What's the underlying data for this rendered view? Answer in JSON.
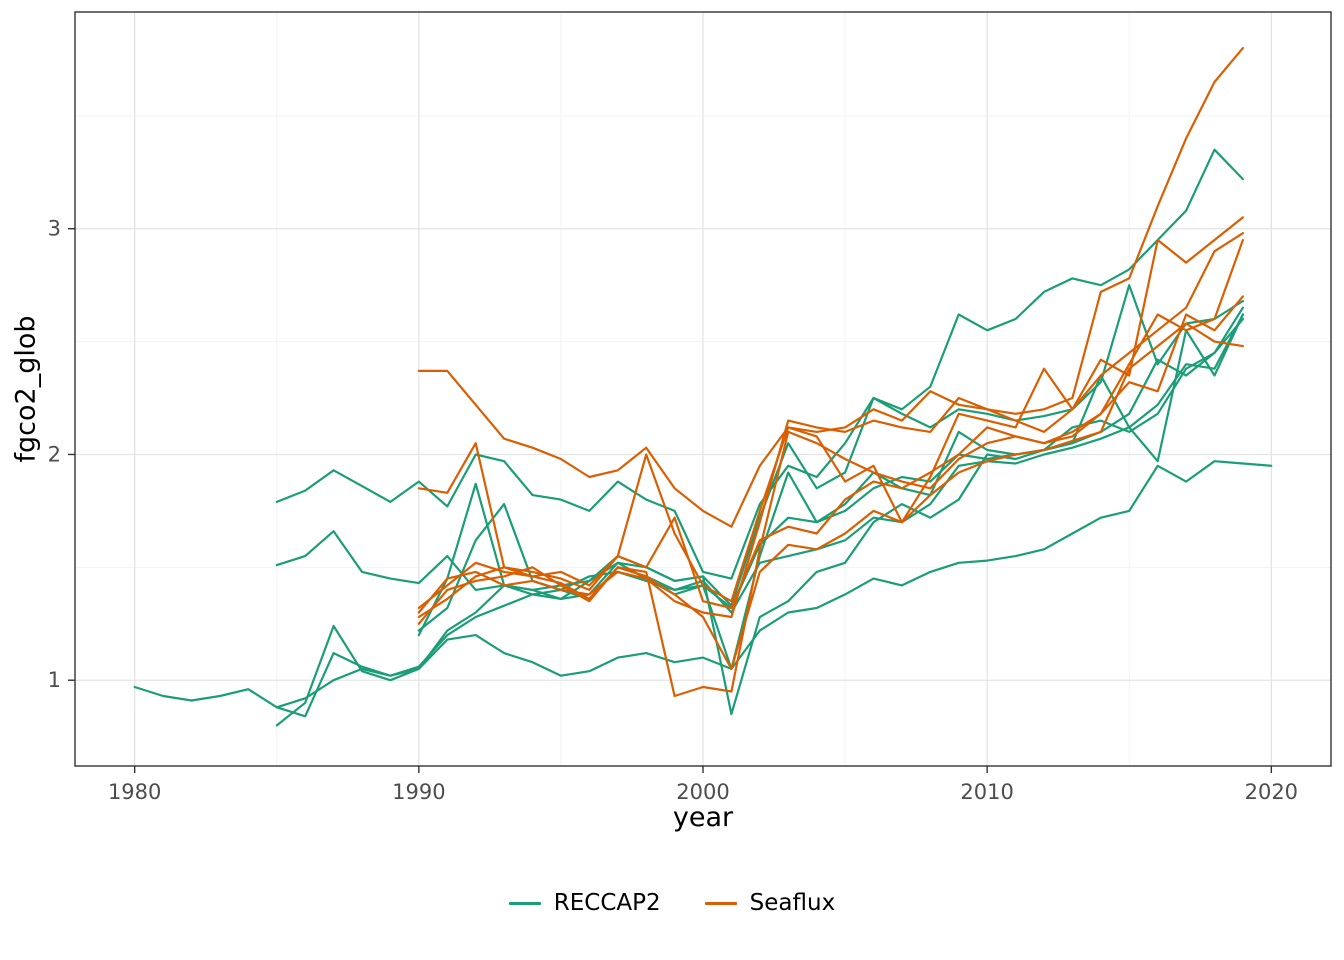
{
  "chart_data": {
    "type": "line",
    "title": "",
    "xlabel": "year",
    "ylabel": "fgco2_glob",
    "xlim": [
      1977.9,
      2022.1
    ],
    "ylim": [
      0.62,
      3.96
    ],
    "x_ticks": [
      1980,
      1990,
      2000,
      2010,
      2020
    ],
    "y_ticks": [
      1,
      2,
      3
    ],
    "x_minor": [
      1985,
      1995,
      2005,
      2015
    ],
    "y_minor": [
      1.5,
      2.5,
      3.5
    ],
    "grid": true,
    "legend_position": "bottom",
    "groups": [
      {
        "name": "RECCAP2",
        "color": "#1B9E77"
      },
      {
        "name": "Seaflux",
        "color": "#D95F02"
      }
    ],
    "series": [
      {
        "group": "RECCAP2",
        "start_year": 1980,
        "values": [
          0.97,
          0.93,
          0.91,
          0.93,
          0.96,
          0.88,
          0.92,
          1.0,
          1.05,
          1.02,
          1.05,
          1.18,
          1.2,
          1.12,
          1.08,
          1.02,
          1.04,
          1.1,
          1.12,
          1.08,
          1.1,
          1.05,
          1.22,
          1.3,
          1.32,
          1.38,
          1.45,
          1.42,
          1.48,
          1.52,
          1.53,
          1.55,
          1.58,
          1.65,
          1.72,
          1.75,
          1.95,
          1.88,
          1.97,
          1.96,
          1.95
        ]
      },
      {
        "group": "RECCAP2",
        "start_year": 1985,
        "values": [
          1.79,
          1.84,
          1.93,
          1.86,
          1.79,
          1.88,
          1.77,
          2.0,
          1.97,
          1.82,
          1.8,
          1.75,
          1.88,
          1.8,
          1.75,
          1.48,
          1.45,
          1.78,
          1.95,
          1.9,
          2.05,
          2.25,
          2.2,
          2.3,
          2.62,
          2.55,
          2.6,
          2.72,
          2.78,
          2.75,
          2.82,
          2.95,
          3.08,
          3.35,
          3.22
        ]
      },
      {
        "group": "RECCAP2",
        "start_year": 1985,
        "values": [
          1.51,
          1.55,
          1.66,
          1.48,
          1.45,
          1.43,
          1.55,
          1.4,
          1.42,
          1.38,
          1.36,
          1.38,
          1.52,
          1.45,
          1.38,
          1.42,
          1.32,
          1.6,
          1.72,
          1.7,
          1.75,
          1.85,
          1.9,
          1.88,
          2.0,
          1.98,
          2.0,
          2.02,
          2.05,
          2.1,
          2.18,
          2.42,
          2.35,
          2.45,
          2.6
        ]
      },
      {
        "group": "RECCAP2",
        "start_year": 1985,
        "values": [
          0.88,
          0.84,
          1.12,
          1.06,
          1.02,
          1.06,
          1.2,
          1.28,
          1.33,
          1.38,
          1.4,
          1.36,
          1.5,
          1.46,
          1.4,
          1.44,
          1.3,
          1.52,
          1.55,
          1.58,
          1.62,
          1.72,
          1.7,
          1.78,
          1.95,
          1.97,
          1.96,
          2.0,
          2.03,
          2.07,
          2.12,
          2.22,
          2.4,
          2.38,
          2.62
        ]
      },
      {
        "group": "RECCAP2",
        "start_year": 1985,
        "values": [
          0.8,
          0.9,
          1.24,
          1.04,
          1.0,
          1.05,
          1.22,
          1.3,
          1.42,
          1.4,
          1.36,
          1.44,
          1.55,
          1.5,
          1.44,
          1.46,
          0.85,
          1.28,
          1.35,
          1.48,
          1.52,
          1.7,
          1.78,
          1.72,
          1.8,
          2.0,
          1.98,
          2.02,
          2.12,
          2.15,
          2.1,
          2.18,
          2.38,
          2.45,
          2.65
        ]
      },
      {
        "group": "RECCAP2",
        "start_year": 1990,
        "values": [
          1.2,
          1.45,
          1.87,
          1.42,
          1.4,
          1.42,
          1.44,
          1.52,
          1.5,
          1.44,
          1.46,
          1.33,
          1.72,
          2.05,
          1.85,
          1.92,
          2.25,
          2.18,
          2.12,
          2.2,
          2.18,
          2.15,
          2.17,
          2.2,
          2.32,
          2.75,
          2.4,
          2.58,
          2.6,
          2.68
        ]
      },
      {
        "group": "RECCAP2",
        "start_year": 1990,
        "values": [
          1.22,
          1.32,
          1.62,
          1.78,
          1.44,
          1.4,
          1.46,
          1.48,
          1.44,
          1.4,
          1.42,
          1.05,
          1.55,
          1.92,
          1.7,
          1.78,
          1.92,
          1.85,
          1.82,
          2.1,
          2.02,
          2.0,
          2.02,
          2.05,
          2.35,
          2.12,
          1.97,
          2.55,
          2.35,
          2.62
        ]
      },
      {
        "group": "Seaflux",
        "start_year": 1990,
        "values": [
          2.37,
          2.37,
          2.22,
          2.07,
          2.03,
          1.98,
          1.9,
          1.93,
          2.03,
          1.85,
          1.75,
          1.68,
          1.95,
          2.12,
          2.1,
          2.12,
          2.2,
          2.15,
          2.28,
          2.22,
          2.2,
          2.18,
          2.2,
          2.25,
          2.72,
          2.78,
          3.1,
          3.4,
          3.65,
          3.8
        ]
      },
      {
        "group": "Seaflux",
        "start_year": 1990,
        "values": [
          1.85,
          1.83,
          2.05,
          1.5,
          1.48,
          1.45,
          1.4,
          1.55,
          2.0,
          1.65,
          1.42,
          1.35,
          1.75,
          2.12,
          2.08,
          1.88,
          1.95,
          1.7,
          1.9,
          2.18,
          2.15,
          2.12,
          2.38,
          2.2,
          2.42,
          2.35,
          2.95,
          2.85,
          2.95,
          3.05
        ]
      },
      {
        "group": "Seaflux",
        "start_year": 1990,
        "values": [
          1.32,
          1.42,
          1.52,
          1.48,
          1.46,
          1.43,
          1.36,
          1.5,
          1.48,
          0.93,
          0.97,
          0.95,
          1.58,
          2.1,
          2.05,
          1.98,
          1.92,
          1.88,
          1.85,
          1.98,
          2.05,
          2.08,
          2.05,
          2.1,
          2.18,
          2.4,
          2.62,
          2.55,
          2.6,
          2.95
        ]
      },
      {
        "group": "Seaflux",
        "start_year": 1990,
        "values": [
          1.28,
          1.36,
          1.46,
          1.5,
          1.46,
          1.48,
          1.42,
          1.55,
          1.5,
          1.72,
          1.35,
          1.32,
          1.62,
          1.68,
          1.65,
          1.8,
          1.88,
          1.85,
          1.92,
          2.0,
          2.12,
          2.08,
          2.05,
          2.08,
          2.18,
          2.32,
          2.28,
          2.62,
          2.55,
          2.7
        ]
      },
      {
        "group": "Seaflux",
        "start_year": 1990,
        "values": [
          1.25,
          1.4,
          1.44,
          1.46,
          1.5,
          1.42,
          1.35,
          1.5,
          1.46,
          1.38,
          1.28,
          1.05,
          1.48,
          1.6,
          1.58,
          1.65,
          1.75,
          1.7,
          1.82,
          1.92,
          1.97,
          2.0,
          2.02,
          2.06,
          2.1,
          2.38,
          2.48,
          2.58,
          2.5,
          2.48
        ]
      },
      {
        "group": "Seaflux",
        "start_year": 1990,
        "values": [
          1.3,
          1.45,
          1.48,
          1.42,
          1.44,
          1.4,
          1.38,
          1.48,
          1.45,
          1.35,
          1.3,
          1.28,
          1.7,
          2.15,
          2.12,
          2.1,
          2.15,
          2.12,
          2.1,
          2.25,
          2.2,
          2.15,
          2.1,
          2.2,
          2.35,
          2.45,
          2.55,
          2.65,
          2.9,
          2.98
        ]
      }
    ]
  }
}
